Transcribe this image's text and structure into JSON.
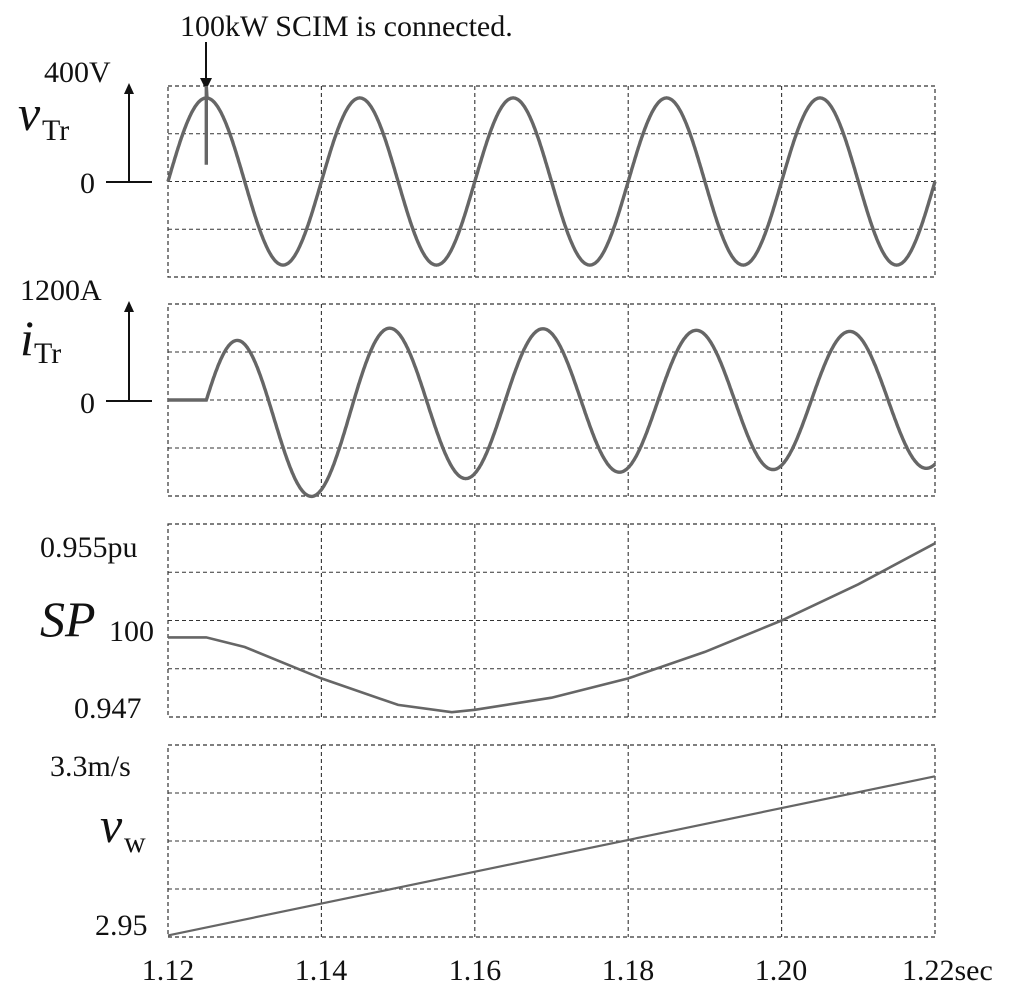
{
  "chart_data": [
    {
      "type": "line",
      "ylabel_main": "v",
      "ylabel_sub": "Tr",
      "scale_label": "400V",
      "zero_label": "0",
      "x": {
        "min": 1.12,
        "max": 1.22,
        "unit": "sec"
      },
      "annotation": {
        "text": "100kW SCIM is connected.",
        "x": 1.125
      },
      "series": [
        {
          "wave": "sine",
          "amplitude": 350,
          "frequency_hz": 50,
          "phase_start": 1.12,
          "transient": {
            "x": 1.125,
            "spike_to": 400,
            "drop_to": 70
          },
          "color": "#666666"
        }
      ]
    },
    {
      "type": "line",
      "ylabel_main": "i",
      "ylabel_sub": "Tr",
      "scale_label": "1200A",
      "zero_label": "0",
      "x": {
        "min": 1.12,
        "max": 1.22,
        "unit": "sec"
      },
      "series": [
        {
          "wave": "damped-sine",
          "start": 1.125,
          "amplitude_start": 1150,
          "amplitude_end": 840,
          "decay_time": 0.03,
          "frequency_hz": 50,
          "offset_start": -400,
          "offset_decay": 0.015,
          "color": "#666666"
        }
      ]
    },
    {
      "type": "line",
      "ylabel_main": "SP",
      "ylabel_sub": "100",
      "ymax_label": "0.955pu",
      "ymin_label": "0.947",
      "ylim": [
        0.947,
        0.955
      ],
      "x": [
        1.12,
        1.125,
        1.13,
        1.14,
        1.15,
        1.157,
        1.16,
        1.17,
        1.18,
        1.19,
        1.2,
        1.21,
        1.22
      ],
      "values": [
        0.9503,
        0.9503,
        0.9499,
        0.9486,
        0.9475,
        0.9472,
        0.9473,
        0.9478,
        0.9486,
        0.9497,
        0.951,
        0.9525,
        0.9542
      ],
      "color": "#666666"
    },
    {
      "type": "line",
      "ylabel_main": "v",
      "ylabel_sub": "w",
      "ymax_label": "3.3m/s",
      "ymin_label": "2.95",
      "ylim": [
        2.95,
        3.3
      ],
      "x": [
        1.12,
        1.22
      ],
      "values": [
        2.953,
        3.243
      ],
      "color": "#666666"
    }
  ],
  "x_axis": {
    "ticks": [
      "1.12",
      "1.14",
      "1.16",
      "1.18",
      "1.20",
      "1.22sec"
    ]
  }
}
